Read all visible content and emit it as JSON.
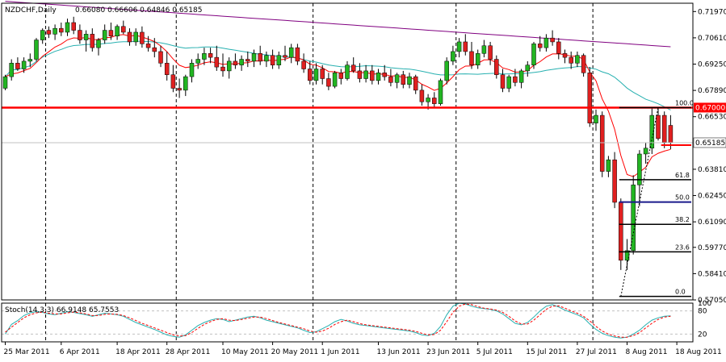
{
  "header": {
    "symbol": "NZDCHF,Daily",
    "ohlc": "0.66080 0.66606 0.64846 0.65185"
  },
  "stoch_label": "Stoch(14,3,3) 66.9148 65.7553",
  "colors": {
    "background": "#ffffff",
    "grid": "#c0c0c0",
    "bull_candle": "#22b522",
    "bear_candle": "#e02020",
    "ma_fast": "#ff0000",
    "ma_mid": "#27b0b0",
    "ma_slow": "#800080",
    "level_line": "#ff0000",
    "current_price_box": "#ff0000",
    "fib_lines": "#000000",
    "fib_mid": "#1a1a8c",
    "stoch_main": "#27b0b0",
    "stoch_signal": "#ff0000"
  },
  "chart_data": [
    {
      "type": "candlestick",
      "title": "NZDCHF,Daily",
      "y_ticks": [
        0.7197,
        0.7061,
        0.6925,
        0.6789,
        0.6653,
        0.6381,
        0.6245,
        0.6109,
        0.5977,
        0.5841,
        0.5705
      ],
      "ylim": [
        0.5705,
        0.724
      ],
      "x_labels": [
        {
          "label": "25 Mar 2011",
          "index": 0
        },
        {
          "label": "6 Apr 2011",
          "index": 9
        },
        {
          "label": "18 Apr 2011",
          "index": 18
        },
        {
          "label": "28 Apr 2011",
          "index": 26
        },
        {
          "label": "10 May 2011",
          "index": 35
        },
        {
          "label": "20 May 2011",
          "index": 43
        },
        {
          "label": "1 Jun 2011",
          "index": 51
        },
        {
          "label": "13 Jun 2011",
          "index": 60
        },
        {
          "label": "23 Jun 2011",
          "index": 68
        },
        {
          "label": "5 Jul 2011",
          "index": 76
        },
        {
          "label": "15 Jul 2011",
          "index": 84
        },
        {
          "label": "27 Jul 2011",
          "index": 92
        },
        {
          "label": "8 Aug 2011",
          "index": 100
        },
        {
          "label": "18 Aug 2011",
          "index": 108
        }
      ],
      "period_separators": [
        6,
        27,
        49,
        72,
        94
      ],
      "horizontal_level": {
        "value": 0.67,
        "label": "0.67000"
      },
      "current_price": {
        "value": 0.65185,
        "label": "0.65185"
      },
      "fibonacci": {
        "low": 0.5723,
        "high": 0.67,
        "start_index": 99,
        "end_index": 105,
        "levels": [
          {
            "ratio": 0.0,
            "label": "0.0"
          },
          {
            "ratio": 0.236,
            "label": "23.6"
          },
          {
            "ratio": 0.382,
            "label": "38.2"
          },
          {
            "ratio": 0.5,
            "label": "50.0"
          },
          {
            "ratio": 0.618,
            "label": "61.8"
          },
          {
            "ratio": 1.0,
            "label": "100.0"
          }
        ]
      },
      "candles": [
        [
          0.68,
          0.687,
          0.679,
          0.686
        ],
        [
          0.686,
          0.695,
          0.684,
          0.693
        ],
        [
          0.693,
          0.696,
          0.689,
          0.69
        ],
        [
          0.69,
          0.696,
          0.688,
          0.694
        ],
        [
          0.694,
          0.698,
          0.691,
          0.695
        ],
        [
          0.695,
          0.706,
          0.694,
          0.705
        ],
        [
          0.705,
          0.711,
          0.703,
          0.71
        ],
        [
          0.71,
          0.712,
          0.706,
          0.708
        ],
        [
          0.708,
          0.713,
          0.705,
          0.711
        ],
        [
          0.711,
          0.714,
          0.707,
          0.709
        ],
        [
          0.709,
          0.716,
          0.707,
          0.714
        ],
        [
          0.714,
          0.717,
          0.708,
          0.71
        ],
        [
          0.71,
          0.713,
          0.703,
          0.705
        ],
        [
          0.705,
          0.71,
          0.699,
          0.708
        ],
        [
          0.708,
          0.711,
          0.699,
          0.701
        ],
        [
          0.701,
          0.706,
          0.697,
          0.705
        ],
        [
          0.705,
          0.713,
          0.703,
          0.71
        ],
        [
          0.71,
          0.714,
          0.705,
          0.707
        ],
        [
          0.707,
          0.713,
          0.705,
          0.712
        ],
        [
          0.712,
          0.715,
          0.708,
          0.709
        ],
        [
          0.709,
          0.711,
          0.702,
          0.704
        ],
        [
          0.704,
          0.711,
          0.702,
          0.709
        ],
        [
          0.709,
          0.712,
          0.701,
          0.703
        ],
        [
          0.703,
          0.707,
          0.699,
          0.701
        ],
        [
          0.701,
          0.706,
          0.696,
          0.699
        ],
        [
          0.699,
          0.702,
          0.691,
          0.693
        ],
        [
          0.693,
          0.699,
          0.684,
          0.687
        ],
        [
          0.687,
          0.692,
          0.678,
          0.68
        ],
        [
          0.68,
          0.685,
          0.675,
          0.679
        ],
        [
          0.679,
          0.687,
          0.676,
          0.686
        ],
        [
          0.686,
          0.695,
          0.683,
          0.693
        ],
        [
          0.693,
          0.698,
          0.69,
          0.695
        ],
        [
          0.695,
          0.701,
          0.692,
          0.698
        ],
        [
          0.698,
          0.701,
          0.693,
          0.696
        ],
        [
          0.696,
          0.702,
          0.689,
          0.691
        ],
        [
          0.691,
          0.698,
          0.686,
          0.689
        ],
        [
          0.689,
          0.696,
          0.685,
          0.694
        ],
        [
          0.694,
          0.698,
          0.69,
          0.692
        ],
        [
          0.692,
          0.697,
          0.689,
          0.695
        ],
        [
          0.695,
          0.699,
          0.691,
          0.694
        ],
        [
          0.694,
          0.7,
          0.691,
          0.698
        ],
        [
          0.698,
          0.702,
          0.692,
          0.694
        ],
        [
          0.694,
          0.699,
          0.691,
          0.697
        ],
        [
          0.697,
          0.7,
          0.69,
          0.692
        ],
        [
          0.692,
          0.699,
          0.69,
          0.697
        ],
        [
          0.697,
          0.702,
          0.694,
          0.696
        ],
        [
          0.696,
          0.703,
          0.693,
          0.701
        ],
        [
          0.701,
          0.703,
          0.692,
          0.694
        ],
        [
          0.694,
          0.698,
          0.688,
          0.69
        ],
        [
          0.69,
          0.694,
          0.682,
          0.684
        ],
        [
          0.684,
          0.693,
          0.682,
          0.69
        ],
        [
          0.69,
          0.692,
          0.682,
          0.685
        ],
        [
          0.685,
          0.688,
          0.679,
          0.681
        ],
        [
          0.681,
          0.689,
          0.68,
          0.688
        ],
        [
          0.688,
          0.69,
          0.682,
          0.685
        ],
        [
          0.685,
          0.694,
          0.684,
          0.692
        ],
        [
          0.692,
          0.696,
          0.688,
          0.689
        ],
        [
          0.689,
          0.693,
          0.683,
          0.685
        ],
        [
          0.685,
          0.692,
          0.683,
          0.689
        ],
        [
          0.689,
          0.692,
          0.682,
          0.684
        ],
        [
          0.684,
          0.69,
          0.682,
          0.688
        ],
        [
          0.688,
          0.692,
          0.684,
          0.686
        ],
        [
          0.686,
          0.69,
          0.681,
          0.683
        ],
        [
          0.683,
          0.688,
          0.68,
          0.687
        ],
        [
          0.687,
          0.689,
          0.68,
          0.682
        ],
        [
          0.682,
          0.688,
          0.68,
          0.686
        ],
        [
          0.686,
          0.687,
          0.677,
          0.679
        ],
        [
          0.679,
          0.682,
          0.671,
          0.673
        ],
        [
          0.673,
          0.677,
          0.669,
          0.675
        ],
        [
          0.675,
          0.678,
          0.67,
          0.672
        ],
        [
          0.672,
          0.685,
          0.671,
          0.684
        ],
        [
          0.684,
          0.696,
          0.682,
          0.694
        ],
        [
          0.694,
          0.702,
          0.692,
          0.699
        ],
        [
          0.699,
          0.706,
          0.696,
          0.704
        ],
        [
          0.704,
          0.708,
          0.697,
          0.699
        ],
        [
          0.699,
          0.704,
          0.69,
          0.692
        ],
        [
          0.692,
          0.7,
          0.69,
          0.698
        ],
        [
          0.698,
          0.705,
          0.696,
          0.702
        ],
        [
          0.702,
          0.704,
          0.692,
          0.695
        ],
        [
          0.695,
          0.697,
          0.685,
          0.687
        ],
        [
          0.687,
          0.69,
          0.678,
          0.68
        ],
        [
          0.68,
          0.687,
          0.678,
          0.686
        ],
        [
          0.686,
          0.69,
          0.681,
          0.683
        ],
        [
          0.683,
          0.69,
          0.68,
          0.689
        ],
        [
          0.689,
          0.694,
          0.686,
          0.692
        ],
        [
          0.692,
          0.704,
          0.69,
          0.703
        ],
        [
          0.703,
          0.707,
          0.699,
          0.701
        ],
        [
          0.701,
          0.708,
          0.699,
          0.706
        ],
        [
          0.706,
          0.71,
          0.702,
          0.704
        ],
        [
          0.704,
          0.706,
          0.695,
          0.698
        ],
        [
          0.698,
          0.7,
          0.693,
          0.696
        ],
        [
          0.696,
          0.699,
          0.69,
          0.693
        ],
        [
          0.693,
          0.699,
          0.691,
          0.697
        ],
        [
          0.697,
          0.698,
          0.686,
          0.688
        ],
        [
          0.688,
          0.691,
          0.66,
          0.662
        ],
        [
          0.662,
          0.669,
          0.658,
          0.666
        ],
        [
          0.666,
          0.668,
          0.634,
          0.637
        ],
        [
          0.637,
          0.645,
          0.634,
          0.643
        ],
        [
          0.643,
          0.647,
          0.618,
          0.621
        ],
        [
          0.621,
          0.623,
          0.586,
          0.591
        ],
        [
          0.591,
          0.602,
          0.586,
          0.596
        ],
        [
          0.596,
          0.635,
          0.594,
          0.63
        ],
        [
          0.63,
          0.648,
          0.619,
          0.646
        ],
        [
          0.646,
          0.652,
          0.641,
          0.649
        ],
        [
          0.649,
          0.67,
          0.646,
          0.666
        ],
        [
          0.666,
          0.67,
          0.653,
          0.654
        ],
        [
          0.666,
          0.668,
          0.649,
          0.652
        ],
        [
          0.6608,
          0.6661,
          0.6485,
          0.6519
        ]
      ]
    },
    {
      "type": "line",
      "title": "Stoch(14,3,3)",
      "y_ticks": [
        100,
        80,
        20
      ],
      "ylim": [
        0,
        100
      ],
      "series": [
        {
          "name": "Main",
          "values": [
            20,
            45,
            55,
            68,
            75,
            78,
            76,
            72,
            70,
            74,
            78,
            76,
            73,
            70,
            66,
            70,
            74,
            72,
            70,
            66,
            58,
            50,
            44,
            38,
            32,
            25,
            18,
            14,
            12,
            18,
            30,
            42,
            50,
            56,
            60,
            58,
            52,
            56,
            60,
            64,
            66,
            62,
            56,
            52,
            48,
            44,
            40,
            36,
            30,
            24,
            26,
            34,
            42,
            52,
            58,
            54,
            48,
            44,
            42,
            40,
            38,
            36,
            34,
            32,
            30,
            28,
            24,
            18,
            16,
            22,
            40,
            70,
            92,
            100,
            98,
            92,
            88,
            86,
            84,
            80,
            72,
            60,
            48,
            44,
            50,
            64,
            80,
            92,
            96,
            90,
            82,
            76,
            70,
            62,
            46,
            32,
            22,
            16,
            12,
            10,
            12,
            20,
            30,
            44,
            56,
            62,
            66,
            67
          ]
        },
        {
          "name": "Signal",
          "values": [
            25,
            38,
            50,
            62,
            70,
            75,
            77,
            74,
            72,
            72,
            75,
            77,
            75,
            72,
            68,
            68,
            71,
            72,
            71,
            68,
            62,
            55,
            48,
            42,
            36,
            30,
            24,
            18,
            15,
            16,
            24,
            35,
            45,
            52,
            58,
            60,
            56,
            55,
            58,
            61,
            64,
            64,
            60,
            55,
            50,
            46,
            42,
            38,
            34,
            28,
            25,
            28,
            35,
            45,
            52,
            56,
            52,
            47,
            44,
            42,
            40,
            38,
            36,
            34,
            32,
            30,
            27,
            22,
            18,
            19,
            30,
            52,
            76,
            92,
            98,
            96,
            91,
            87,
            85,
            82,
            76,
            66,
            54,
            46,
            46,
            56,
            70,
            84,
            92,
            93,
            87,
            80,
            74,
            66,
            54,
            40,
            28,
            20,
            15,
            12,
            12,
            16,
            24,
            36,
            48,
            58,
            64,
            66
          ]
        }
      ]
    }
  ]
}
